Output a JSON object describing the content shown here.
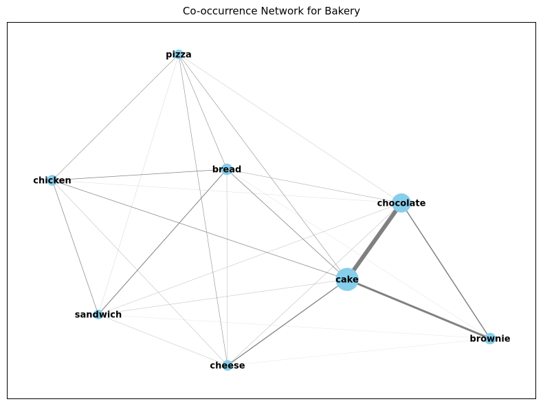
{
  "title": "Co-occurrence Network for Bakery",
  "node_color": "#87ceeb",
  "edge_color": "#808080",
  "frame_color": "#000000",
  "nodes": [
    {
      "id": "pizza",
      "label": "pizza",
      "weight": 1
    },
    {
      "id": "bread",
      "label": "bread",
      "weight": 1.2
    },
    {
      "id": "chicken",
      "label": "chicken",
      "weight": 1.1
    },
    {
      "id": "chocolate",
      "label": "chocolate",
      "weight": 2
    },
    {
      "id": "cake",
      "label": "cake",
      "weight": 2.4
    },
    {
      "id": "sandwich",
      "label": "sandwich",
      "weight": 1
    },
    {
      "id": "brownie",
      "label": "brownie",
      "weight": 1.2
    },
    {
      "id": "cheese",
      "label": "cheese",
      "weight": 1.1
    }
  ],
  "edges": [
    {
      "source": "chocolate",
      "target": "cake",
      "weight": 6
    },
    {
      "source": "cake",
      "target": "brownie",
      "weight": 3
    },
    {
      "source": "chocolate",
      "target": "brownie",
      "weight": 1.5
    },
    {
      "source": "cake",
      "target": "cheese",
      "weight": 1.3
    },
    {
      "source": "bread",
      "target": "sandwich",
      "weight": 1.0
    },
    {
      "source": "bread",
      "target": "cake",
      "weight": 0.8
    },
    {
      "source": "chicken",
      "target": "bread",
      "weight": 0.7
    },
    {
      "source": "chicken",
      "target": "cake",
      "weight": 0.7
    },
    {
      "source": "chicken",
      "target": "sandwich",
      "weight": 0.7
    },
    {
      "source": "pizza",
      "target": "chicken",
      "weight": 0.6
    },
    {
      "source": "pizza",
      "target": "bread",
      "weight": 0.6
    },
    {
      "source": "pizza",
      "target": "cake",
      "weight": 0.6
    },
    {
      "source": "pizza",
      "target": "cheese",
      "weight": 0.6
    },
    {
      "source": "bread",
      "target": "chocolate",
      "weight": 0.5
    },
    {
      "source": "chicken",
      "target": "cheese",
      "weight": 0.5
    },
    {
      "source": "pizza",
      "target": "chocolate",
      "weight": 0.4
    },
    {
      "source": "pizza",
      "target": "sandwich",
      "weight": 0.3
    },
    {
      "source": "bread",
      "target": "cheese",
      "weight": 0.4
    },
    {
      "source": "sandwich",
      "target": "chocolate",
      "weight": 0.4
    },
    {
      "source": "sandwich",
      "target": "cake",
      "weight": 0.4
    },
    {
      "source": "sandwich",
      "target": "cheese",
      "weight": 0.4
    },
    {
      "source": "cheese",
      "target": "chocolate",
      "weight": 0.5
    },
    {
      "source": "chicken",
      "target": "chocolate",
      "weight": 0.25
    },
    {
      "source": "bread",
      "target": "brownie",
      "weight": 0.25
    },
    {
      "source": "sandwich",
      "target": "brownie",
      "weight": 0.2
    },
    {
      "source": "cheese",
      "target": "brownie",
      "weight": 0.2
    }
  ]
}
